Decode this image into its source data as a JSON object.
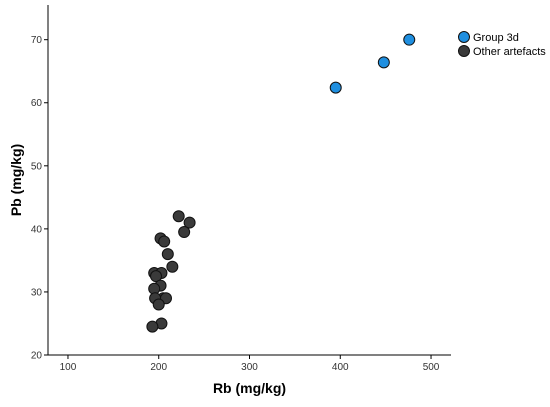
{
  "chart_data": {
    "type": "scatter",
    "title": "",
    "xlabel": "Rb (mg/kg)",
    "ylabel": "Pb (mg/kg)",
    "xlim": [
      78,
      522
    ],
    "ylim": [
      20,
      75.5
    ],
    "xticks": [
      100,
      200,
      300,
      400,
      500
    ],
    "yticks": [
      20,
      30,
      40,
      50,
      60,
      70
    ],
    "grid": false,
    "legend_position": "top-right",
    "series": [
      {
        "name": "Group 3d",
        "color": "#1f8fe0",
        "points": [
          {
            "x": 395,
            "y": 62.4
          },
          {
            "x": 448,
            "y": 66.4
          },
          {
            "x": 476,
            "y": 70.0
          }
        ]
      },
      {
        "name": "Other artefacts",
        "color": "#3a3a3a",
        "points": [
          {
            "x": 222,
            "y": 42.0
          },
          {
            "x": 234,
            "y": 41.0
          },
          {
            "x": 228,
            "y": 39.5
          },
          {
            "x": 202,
            "y": 38.5
          },
          {
            "x": 206,
            "y": 38.0
          },
          {
            "x": 210,
            "y": 36.0
          },
          {
            "x": 215,
            "y": 34.0
          },
          {
            "x": 195,
            "y": 33.0
          },
          {
            "x": 203,
            "y": 33.0
          },
          {
            "x": 197,
            "y": 32.5
          },
          {
            "x": 202,
            "y": 31.0
          },
          {
            "x": 195,
            "y": 30.5
          },
          {
            "x": 205,
            "y": 29.0
          },
          {
            "x": 196,
            "y": 29.0
          },
          {
            "x": 208,
            "y": 29.0
          },
          {
            "x": 200,
            "y": 28.0
          },
          {
            "x": 203,
            "y": 25.0
          },
          {
            "x": 193,
            "y": 24.5
          }
        ]
      }
    ]
  }
}
